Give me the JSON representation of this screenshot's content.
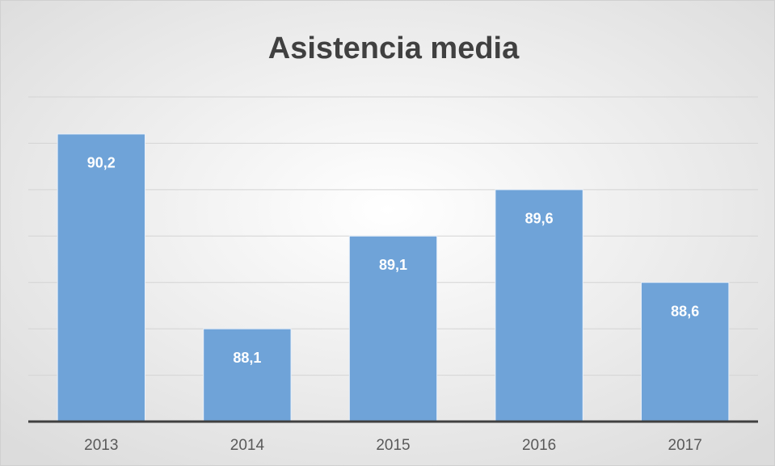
{
  "chart_data": {
    "type": "bar",
    "title": "Asistencia media",
    "categories": [
      "2013",
      "2014",
      "2015",
      "2016",
      "2017"
    ],
    "values": [
      90.2,
      88.1,
      89.1,
      89.6,
      88.6
    ],
    "value_labels": [
      "90,2",
      "88,1",
      "89,1",
      "89,6",
      "88,6"
    ],
    "color": "#6fa3d8",
    "ylim": [
      87.1,
      90.6
    ],
    "yticks": [
      87.1,
      87.6,
      88.1,
      88.6,
      89.1,
      89.6,
      90.1,
      90.6
    ],
    "grid": true
  }
}
